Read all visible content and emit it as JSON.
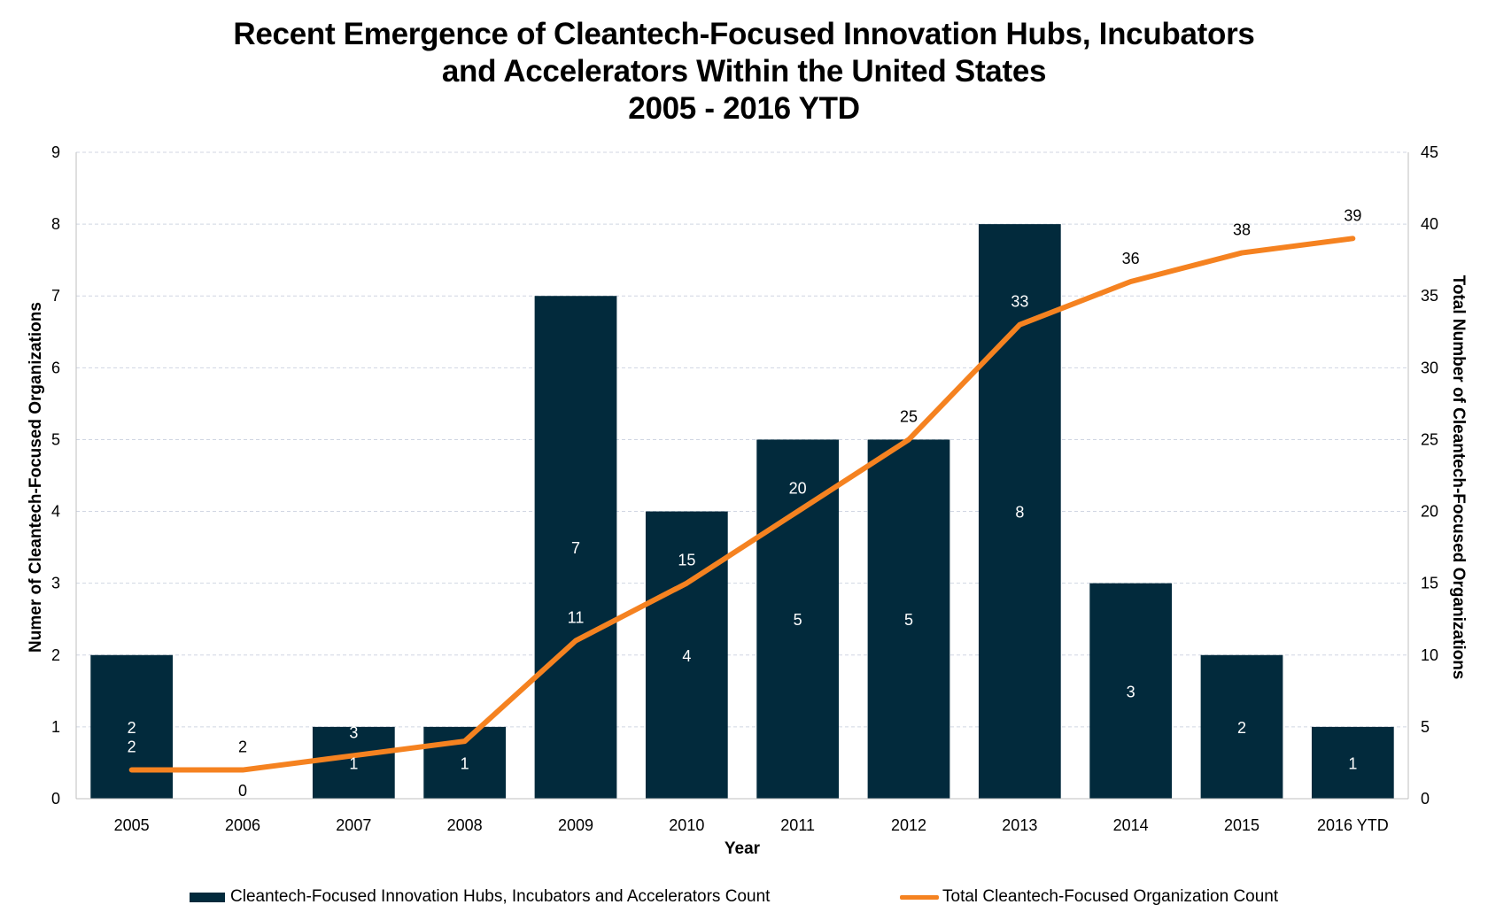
{
  "title": {
    "line1": "Recent Emergence of Cleantech-Focused Innovation Hubs, Incubators",
    "line2": "and Accelerators Within the United States",
    "line3": "2005 - 2016 YTD"
  },
  "colors": {
    "bar": "#022a3c",
    "line": "#f58220",
    "grid": "#d0d6e2",
    "axis": "#bfbfbf"
  },
  "legend": {
    "bar_label": "Cleantech-Focused Innovation Hubs, Incubators and Accelerators Count",
    "line_label": "Total Cleantech-Focused Organization Count"
  },
  "chart_data": {
    "type": "bar",
    "title": "Recent Emergence of Cleantech-Focused Innovation Hubs, Incubators and Accelerators Within the United States 2005 - 2016 YTD",
    "xlabel": "Year",
    "ylabel": "Numer of Cleantech-Focused Organizations",
    "ylabel_right": "Total Number of Cleantech-Focused Organizations",
    "categories": [
      "2005",
      "2006",
      "2007",
      "2008",
      "2009",
      "2010",
      "2011",
      "2012",
      "2013",
      "2014",
      "2015",
      "2016 YTD"
    ],
    "series": [
      {
        "name": "Cleantech-Focused Innovation Hubs, Incubators and Accelerators Count",
        "type": "bar",
        "axis": "left",
        "values": [
          2,
          0,
          1,
          1,
          7,
          4,
          5,
          5,
          8,
          3,
          2,
          1
        ]
      },
      {
        "name": "Total Cleantech-Focused Organization Count",
        "type": "line",
        "axis": "right",
        "values": [
          2,
          2,
          3,
          4,
          11,
          15,
          20,
          25,
          33,
          36,
          38,
          39
        ]
      }
    ],
    "ylim": [
      0,
      9
    ],
    "yticks": [
      "0",
      "1",
      "2",
      "3",
      "4",
      "5",
      "6",
      "7",
      "8",
      "9"
    ],
    "ylim_right": [
      0,
      45
    ],
    "yticks_right": [
      "0",
      "5",
      "10",
      "15",
      "20",
      "25",
      "30",
      "35",
      "40",
      "45"
    ],
    "grid": true,
    "legend_position": "bottom"
  }
}
